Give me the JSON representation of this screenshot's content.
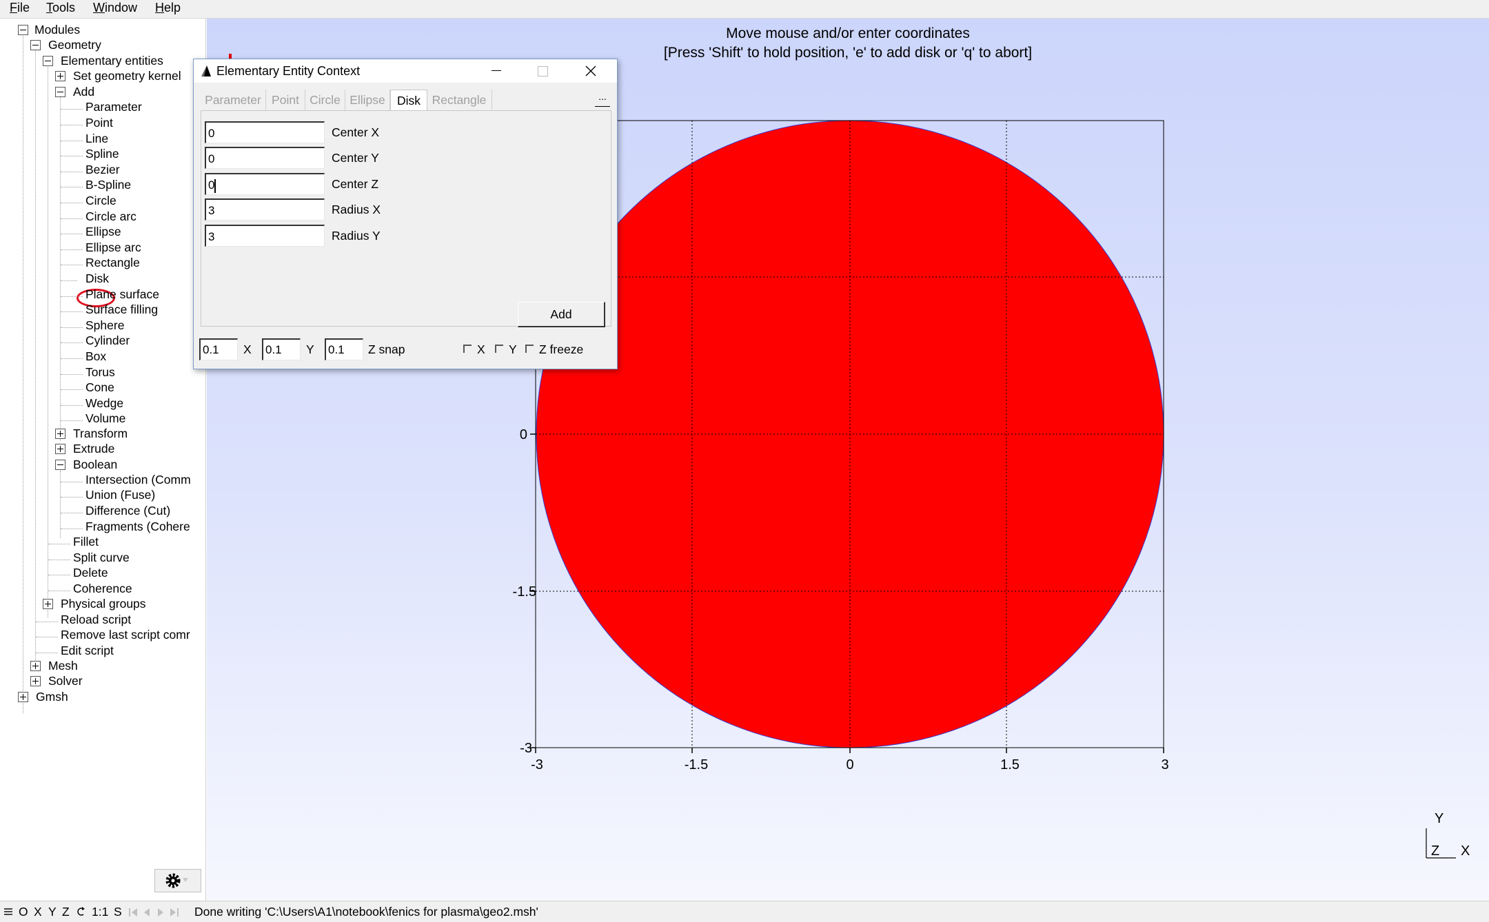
{
  "menu": {
    "file": "File",
    "tools": "Tools",
    "window": "Window",
    "help": "Help"
  },
  "tree": {
    "modules": "Modules",
    "geometry": "Geometry",
    "elementary_entities": "Elementary entities",
    "set_geometry_kernel": "Set geometry kernel",
    "add": "Add",
    "add_items": [
      "Parameter",
      "Point",
      "Line",
      "Spline",
      "Bezier",
      "B-Spline",
      "Circle",
      "Circle arc",
      "Ellipse",
      "Ellipse arc",
      "Rectangle",
      "Disk",
      "Plane surface",
      "Surface filling",
      "Sphere",
      "Cylinder",
      "Box",
      "Torus",
      "Cone",
      "Wedge",
      "Volume"
    ],
    "transform": "Transform",
    "extrude": "Extrude",
    "boolean": "Boolean",
    "boolean_items": [
      "Intersection (Comm",
      "Union (Fuse)",
      "Difference (Cut)",
      "Fragments (Cohere"
    ],
    "fillet": "Fillet",
    "split_curve": "Split curve",
    "delete": "Delete",
    "coherence": "Coherence",
    "physical_groups": "Physical groups",
    "reload_script": "Reload script",
    "remove_last_script": "Remove last script comr",
    "edit_script": "Edit script",
    "mesh": "Mesh",
    "solver": "Solver",
    "gmsh": "Gmsh"
  },
  "graphics": {
    "prompt_line1": "Move mouse and/or enter coordinates",
    "prompt_line2": "[Press 'Shift' to hold position, 'e' to add disk or 'q' to abort]",
    "disk_color": "#ff0000",
    "x_ticks": [
      "-3",
      "-1.5",
      "0",
      "1.5",
      "3"
    ],
    "y_ticks": [
      "0",
      "-1.5",
      "-3"
    ],
    "axes_labels": {
      "y": "Y",
      "z": "Z",
      "x": "X"
    }
  },
  "dialog": {
    "title": "Elementary Entity Context",
    "tabs": [
      "Parameter",
      "Point",
      "Circle",
      "Ellipse",
      "Disk",
      "Rectangle"
    ],
    "active_tab": "Disk",
    "more_button": "...",
    "fields": [
      {
        "label": "Center X",
        "value": "0"
      },
      {
        "label": "Center Y",
        "value": "0"
      },
      {
        "label": "Center Z",
        "value": "0"
      },
      {
        "label": "Radius X",
        "value": "3"
      },
      {
        "label": "Radius Y",
        "value": "3"
      }
    ],
    "add_button": "Add",
    "snap": {
      "x": "0.1",
      "y": "0.1",
      "z": "0.1",
      "x_label": "X",
      "y_label": "Y",
      "z_label": "Z snap"
    },
    "freeze": {
      "x": "X",
      "y": "Y",
      "z": "Z freeze"
    }
  },
  "status": {
    "buttons": {
      "o": "O",
      "x": "X",
      "y": "Y",
      "z": "Z",
      "scale": "1:1",
      "s": "S"
    },
    "message": "Done writing 'C:\\Users\\A1\\notebook\\fenics for plasma\\geo2.msh'"
  }
}
